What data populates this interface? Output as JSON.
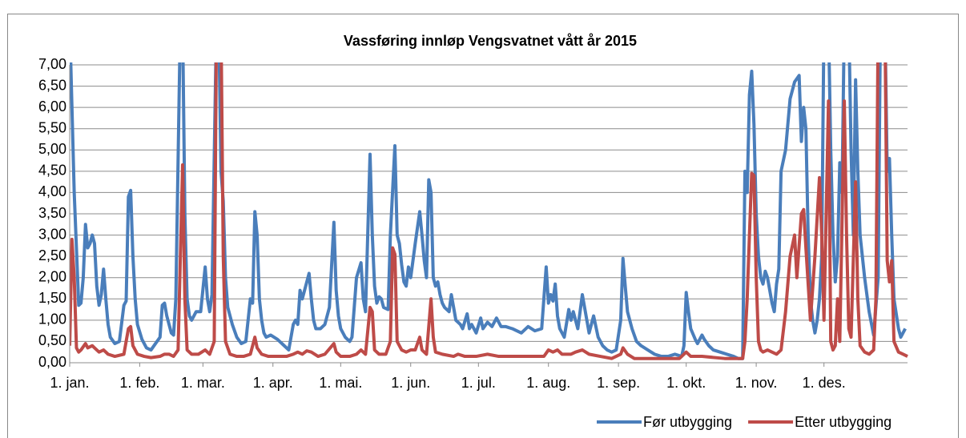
{
  "chart_data": {
    "type": "line",
    "title": "Vassføring innløp Vengsvatnet vått år 2015",
    "xlim": [
      0,
      371
    ],
    "ylim": [
      0,
      7
    ],
    "xticks": [
      {
        "value": 0,
        "label": "1. jan."
      },
      {
        "value": 31,
        "label": "1. feb."
      },
      {
        "value": 59,
        "label": "1. mar."
      },
      {
        "value": 90,
        "label": "1. apr."
      },
      {
        "value": 120,
        "label": "1. mai."
      },
      {
        "value": 151,
        "label": "1. jun."
      },
      {
        "value": 181,
        "label": "1. jul."
      },
      {
        "value": 212,
        "label": "1. aug."
      },
      {
        "value": 243,
        "label": "1. sep."
      },
      {
        "value": 273,
        "label": "1. okt."
      },
      {
        "value": 304,
        "label": "1. nov."
      },
      {
        "value": 334,
        "label": "1. des."
      }
    ],
    "yticks": [
      {
        "value": 0,
        "label": "0,00"
      },
      {
        "value": 0.5,
        "label": "0,50"
      },
      {
        "value": 1,
        "label": "1,00"
      },
      {
        "value": 1.5,
        "label": "1,50"
      },
      {
        "value": 2,
        "label": "2,00"
      },
      {
        "value": 2.5,
        "label": "2,50"
      },
      {
        "value": 3,
        "label": "3,00"
      },
      {
        "value": 3.5,
        "label": "3,50"
      },
      {
        "value": 4,
        "label": "4,00"
      },
      {
        "value": 4.5,
        "label": "4,50"
      },
      {
        "value": 5,
        "label": "5,00"
      },
      {
        "value": 5.5,
        "label": "5,50"
      },
      {
        "value": 6,
        "label": "6,00"
      },
      {
        "value": 6.5,
        "label": "6,50"
      },
      {
        "value": 7,
        "label": "7,00"
      }
    ],
    "grid": true,
    "legend": "bottom",
    "series": [
      {
        "name": "Før utbygging",
        "color": "#4a7ebb",
        "x": [
          0,
          2,
          4,
          5,
          6,
          7,
          8,
          9,
          10,
          11,
          12,
          13,
          14,
          15,
          16,
          17,
          18,
          20,
          22,
          24,
          25,
          26,
          27,
          28,
          29,
          30,
          32,
          34,
          36,
          38,
          40,
          41,
          42,
          43,
          45,
          46,
          47,
          49,
          50,
          51,
          52,
          53,
          54,
          55,
          56,
          58,
          60,
          61,
          62,
          63,
          65,
          66,
          67,
          68,
          69,
          70,
          72,
          74,
          76,
          78,
          80,
          81,
          82,
          83,
          84,
          85,
          86,
          87,
          89,
          92,
          95,
          97,
          99,
          100,
          101,
          102,
          103,
          104,
          106,
          107,
          108,
          109,
          111,
          113,
          115,
          117,
          118,
          119,
          120,
          122,
          124,
          125,
          127,
          129,
          130,
          131,
          133,
          134,
          135,
          136,
          137,
          138,
          139,
          141,
          142,
          144,
          145,
          146,
          147,
          148,
          149,
          150,
          151,
          153,
          155,
          156,
          157,
          158,
          159,
          160,
          161,
          162,
          163,
          164,
          165,
          166,
          168,
          169,
          170,
          171,
          173,
          174,
          176,
          177,
          178,
          180,
          182,
          183,
          185,
          187,
          189,
          191,
          193,
          196,
          200,
          203,
          206,
          209,
          211,
          212,
          213,
          214,
          215,
          216,
          217,
          219,
          221,
          222,
          223,
          225,
          227,
          229,
          230,
          232,
          234,
          236,
          238,
          240,
          242,
          244,
          245,
          246,
          247,
          249,
          251,
          253,
          256,
          259,
          262,
          265,
          268,
          271,
          272,
          273,
          274,
          275,
          277,
          278,
          280,
          281,
          283,
          285,
          288,
          291,
          294,
          296,
          298,
          299,
          300,
          301,
          302,
          303,
          304,
          305,
          306,
          307,
          308,
          309,
          310,
          311,
          312,
          313,
          314,
          315,
          317,
          319,
          321,
          323,
          324,
          325,
          326,
          327,
          328,
          329,
          330,
          331,
          332,
          333,
          334,
          336,
          337,
          338,
          339,
          340,
          341,
          342,
          343,
          345,
          346,
          347,
          348,
          349,
          350,
          352,
          354,
          356,
          358,
          359,
          361,
          362,
          363,
          364,
          365,
          367,
          368,
          370
        ],
        "values": [
          8,
          4.0,
          1.35,
          1.4,
          2.0,
          3.25,
          2.7,
          2.8,
          3.0,
          2.8,
          1.8,
          1.35,
          1.6,
          2.2,
          1.5,
          0.9,
          0.6,
          0.45,
          0.5,
          1.35,
          1.45,
          3.9,
          4.05,
          2.5,
          1.5,
          0.9,
          0.55,
          0.35,
          0.3,
          0.45,
          0.6,
          1.35,
          1.4,
          1.1,
          0.7,
          0.65,
          1.5,
          8,
          8,
          3.5,
          1.5,
          1.1,
          1.0,
          1.1,
          1.2,
          1.2,
          2.25,
          1.5,
          1.2,
          1.6,
          8,
          8,
          4.5,
          3.8,
          2.0,
          1.3,
          0.9,
          0.6,
          0.45,
          0.5,
          1.5,
          1.4,
          3.55,
          3.0,
          1.5,
          1.0,
          0.7,
          0.6,
          0.65,
          0.55,
          0.4,
          0.3,
          0.9,
          1.0,
          0.9,
          1.7,
          1.5,
          1.7,
          2.1,
          1.5,
          1.0,
          0.8,
          0.8,
          0.9,
          1.3,
          3.3,
          1.7,
          1.1,
          0.8,
          0.6,
          0.5,
          0.6,
          2.0,
          2.35,
          1.5,
          1.2,
          4.9,
          3.0,
          1.8,
          1.4,
          1.55,
          1.5,
          1.3,
          1.25,
          3.0,
          5.1,
          3.0,
          2.8,
          2.3,
          1.9,
          1.8,
          2.25,
          2.0,
          2.8,
          3.55,
          3.0,
          2.4,
          2.0,
          4.3,
          4.0,
          2.0,
          1.8,
          1.9,
          1.6,
          1.4,
          1.3,
          1.2,
          1.6,
          1.3,
          1.0,
          0.9,
          0.8,
          1.15,
          0.8,
          0.9,
          0.7,
          1.05,
          0.8,
          0.95,
          0.85,
          1.05,
          0.85,
          0.85,
          0.8,
          0.7,
          0.85,
          0.75,
          0.8,
          2.25,
          1.4,
          1.6,
          1.45,
          1.85,
          1.1,
          0.8,
          0.6,
          1.25,
          1.0,
          1.2,
          0.8,
          1.6,
          1.0,
          0.7,
          1.1,
          0.6,
          0.4,
          0.3,
          0.25,
          0.3,
          1.0,
          2.45,
          1.8,
          1.2,
          0.8,
          0.5,
          0.4,
          0.3,
          0.2,
          0.15,
          0.15,
          0.2,
          0.15,
          0.4,
          1.65,
          1.2,
          0.8,
          0.55,
          0.45,
          0.65,
          0.55,
          0.4,
          0.3,
          0.25,
          0.2,
          0.15,
          0.1,
          0.1,
          4.5,
          4.0,
          6.3,
          6.85,
          5.6,
          3.5,
          2.5,
          2.0,
          1.85,
          2.15,
          2.0,
          1.7,
          1.4,
          1.2,
          1.85,
          2.2,
          4.5,
          5.0,
          6.2,
          6.6,
          6.75,
          5.2,
          6.0,
          5.5,
          3.0,
          1.5,
          1.0,
          0.7,
          1.0,
          1.5,
          2.5,
          8,
          8,
          5.0,
          3.0,
          1.9,
          2.5,
          4.7,
          4.0,
          8,
          8,
          5.0,
          3.0,
          6.65,
          4.5,
          3.0,
          2.0,
          1.2,
          0.65,
          2.0,
          8,
          8,
          4.5,
          4.8,
          3.0,
          1.5,
          0.8,
          0.6,
          0.8
        ]
      },
      {
        "name": "Etter utbygging",
        "color": "#be4b48",
        "x": [
          0,
          1,
          2,
          3,
          4,
          5,
          7,
          8,
          10,
          11,
          13,
          15,
          17,
          20,
          24,
          26,
          27,
          28,
          30,
          33,
          36,
          40,
          42,
          44,
          46,
          48,
          50,
          51,
          52,
          54,
          57,
          60,
          62,
          64,
          65,
          67,
          68,
          69,
          71,
          74,
          77,
          80,
          82,
          83,
          85,
          88,
          92,
          96,
          99,
          101,
          103,
          105,
          107,
          110,
          113,
          117,
          118,
          120,
          124,
          127,
          129,
          131,
          133,
          134,
          135,
          137,
          140,
          142,
          143,
          144,
          145,
          147,
          149,
          151,
          153,
          155,
          156,
          158,
          160,
          161,
          162,
          165,
          170,
          172,
          175,
          180,
          185,
          190,
          195,
          200,
          210,
          212,
          214,
          216,
          218,
          222,
          224,
          227,
          230,
          235,
          240,
          244,
          245,
          247,
          250,
          260,
          270,
          273,
          275,
          280,
          290,
          298,
          299,
          300,
          301,
          302,
          303,
          304,
          305,
          306,
          307,
          309,
          311,
          313,
          315,
          317,
          319,
          321,
          322,
          324,
          325,
          326,
          328,
          330,
          332,
          333,
          334,
          336,
          337,
          338,
          339,
          340,
          341,
          343,
          344,
          345,
          346,
          348,
          349,
          350,
          352,
          354,
          356,
          357,
          358,
          361,
          362,
          363,
          364,
          365,
          367,
          369,
          371
        ],
        "values": [
          0.4,
          2.9,
          2.0,
          0.35,
          0.25,
          0.3,
          0.45,
          0.35,
          0.4,
          0.35,
          0.25,
          0.3,
          0.2,
          0.15,
          0.2,
          0.8,
          0.85,
          0.4,
          0.2,
          0.15,
          0.12,
          0.15,
          0.2,
          0.2,
          0.15,
          0.3,
          4.65,
          1.5,
          0.3,
          0.2,
          0.2,
          0.3,
          0.2,
          0.5,
          8,
          8,
          2.5,
          0.5,
          0.2,
          0.15,
          0.15,
          0.2,
          0.6,
          0.35,
          0.2,
          0.15,
          0.15,
          0.15,
          0.2,
          0.25,
          0.2,
          0.28,
          0.25,
          0.15,
          0.2,
          0.45,
          0.25,
          0.15,
          0.15,
          0.2,
          0.3,
          0.2,
          1.3,
          1.2,
          0.3,
          0.2,
          0.2,
          0.5,
          2.7,
          2.55,
          0.5,
          0.3,
          0.25,
          0.3,
          0.3,
          0.6,
          0.3,
          0.2,
          1.5,
          0.6,
          0.25,
          0.2,
          0.15,
          0.2,
          0.15,
          0.15,
          0.2,
          0.15,
          0.15,
          0.15,
          0.15,
          0.3,
          0.25,
          0.3,
          0.2,
          0.2,
          0.25,
          0.3,
          0.2,
          0.15,
          0.1,
          0.2,
          0.35,
          0.2,
          0.1,
          0.1,
          0.1,
          0.25,
          0.15,
          0.15,
          0.1,
          0.1,
          0.5,
          1.5,
          3.0,
          4.45,
          4.4,
          2.0,
          0.5,
          0.3,
          0.25,
          0.3,
          0.25,
          0.2,
          0.3,
          1.2,
          2.5,
          3.0,
          2.0,
          3.5,
          3.6,
          2.7,
          1.0,
          2.5,
          4.35,
          3.0,
          1.0,
          6.15,
          0.5,
          0.3,
          0.4,
          1.5,
          0.5,
          6.15,
          3.0,
          0.8,
          0.6,
          4.25,
          1.5,
          0.4,
          0.25,
          0.2,
          0.3,
          1.5,
          8,
          8,
          2.4,
          1.9,
          2.4,
          0.5,
          0.25,
          0.2,
          0.15
        ]
      }
    ]
  }
}
